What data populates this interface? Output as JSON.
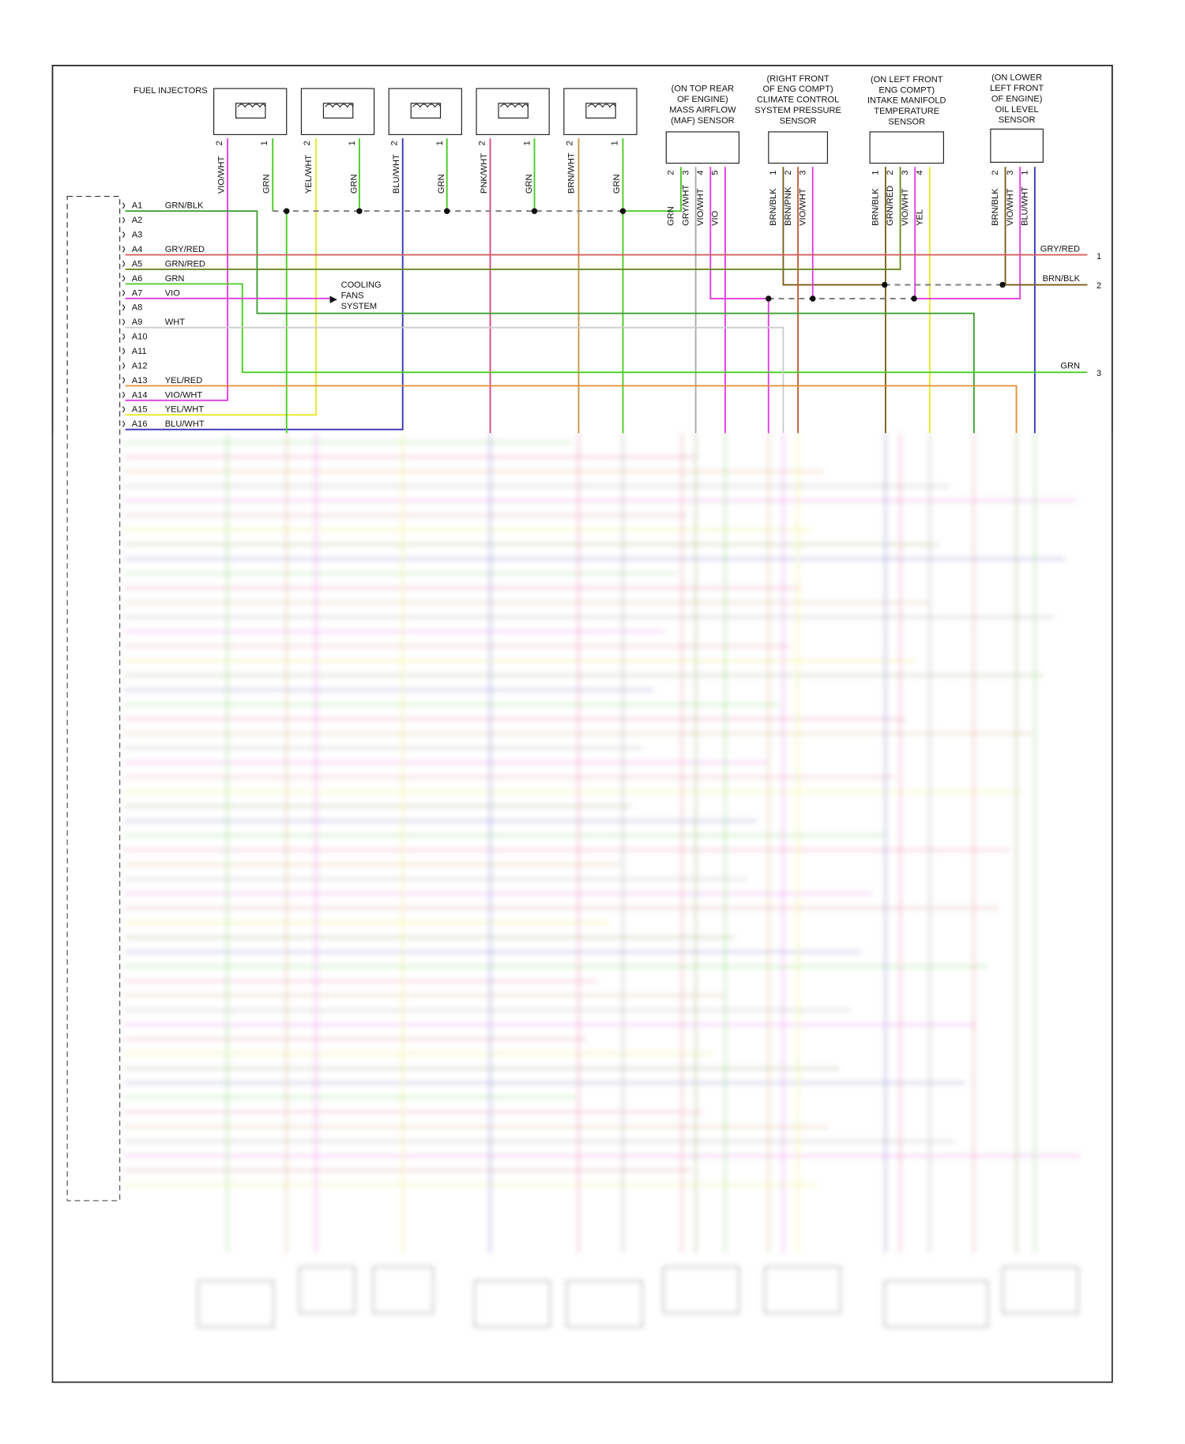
{
  "injectors": {
    "label": "FUEL INJECTORS",
    "items": [
      {
        "pins": [
          "2",
          "1"
        ],
        "wires": [
          "VIO/WHT",
          "GRN"
        ]
      },
      {
        "pins": [
          "2",
          "1"
        ],
        "wires": [
          "YEL/WHT",
          "GRN"
        ]
      },
      {
        "pins": [
          "2",
          "1"
        ],
        "wires": [
          "BLU/WHT",
          "GRN"
        ]
      },
      {
        "pins": [
          "2",
          "1"
        ],
        "wires": [
          "PNK/WHT",
          "GRN"
        ]
      },
      {
        "pins": [
          "2",
          "1"
        ],
        "wires": [
          "BRN/WHT",
          "GRN"
        ]
      }
    ]
  },
  "sensors": [
    {
      "lines": [
        "(ON TOP REAR",
        "OF ENGINE)",
        "MASS AIRFLOW",
        "(MAF) SENSOR"
      ],
      "pins": [
        "2",
        "3",
        "4",
        "5"
      ],
      "wires": [
        "GRN",
        "GRY/WHT",
        "VIO/WHT",
        "VIO"
      ]
    },
    {
      "lines": [
        "(RIGHT FRONT",
        "OF ENG COMPT)",
        "CLIMATE CONTROL",
        "SYSTEM PRESSURE",
        "SENSOR"
      ],
      "pins": [
        "1",
        "2",
        "3"
      ],
      "wires": [
        "BRN/BLK",
        "BRN/PNK",
        "VIO/WHT"
      ]
    },
    {
      "lines": [
        "(ON LEFT FRONT",
        "ENG COMPT)",
        "INTAKE MANIFOLD",
        "TEMPERATURE",
        "SENSOR"
      ],
      "pins": [
        "1",
        "2",
        "3",
        "4"
      ],
      "wires": [
        "BRN/BLK",
        "GRN/RED",
        "VIO/WHT",
        "YEL"
      ]
    },
    {
      "lines": [
        "(ON LOWER",
        "LEFT FRONT",
        "OF ENGINE)",
        "OIL LEVEL",
        "SENSOR"
      ],
      "pins": [
        "2",
        "3",
        "1"
      ],
      "wires": [
        "BRN/BLK",
        "VIO/WHT",
        "BLU/WHT"
      ]
    }
  ],
  "connector": {
    "pins": [
      {
        "pin": "A1",
        "wire": "GRN/BLK"
      },
      {
        "pin": "A2"
      },
      {
        "pin": "A3"
      },
      {
        "pin": "A4",
        "wire": "GRY/RED"
      },
      {
        "pin": "A5",
        "wire": "GRN/RED"
      },
      {
        "pin": "A6",
        "wire": "GRN"
      },
      {
        "pin": "A7",
        "wire": "VIO"
      },
      {
        "pin": "A8"
      },
      {
        "pin": "A9",
        "wire": "WHT"
      },
      {
        "pin": "A10"
      },
      {
        "pin": "A11"
      },
      {
        "pin": "A12"
      },
      {
        "pin": "A13",
        "wire": "YEL/RED"
      },
      {
        "pin": "A14",
        "wire": "VIO/WHT"
      },
      {
        "pin": "A15",
        "wire": "YEL/WHT"
      },
      {
        "pin": "A16",
        "wire": "BLU/WHT"
      }
    ]
  },
  "cooling_fans": [
    "COOLING",
    "FANS",
    "SYSTEM"
  ],
  "outputs": [
    {
      "wire": "GRY/RED",
      "num": "1"
    },
    {
      "wire": "BRN/BLK",
      "num": "2"
    },
    {
      "wire": "GRN",
      "num": "3"
    }
  ]
}
